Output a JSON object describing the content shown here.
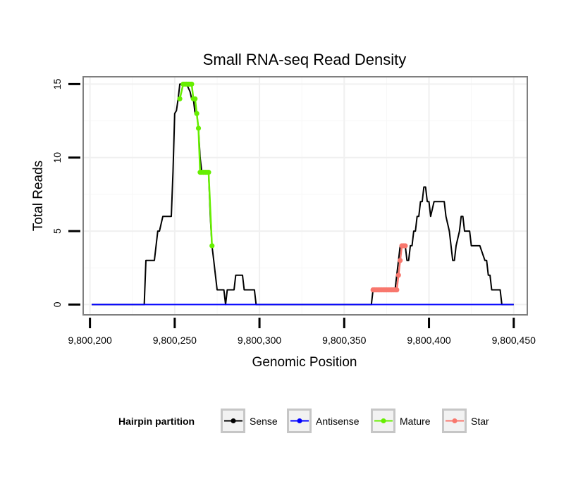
{
  "chart_data": {
    "type": "line",
    "title": "Small RNA-seq Read Density",
    "xlabel": "Genomic Position",
    "ylabel": "Total Reads",
    "xlim": [
      9800196,
      9800458
    ],
    "ylim": [
      -0.7,
      15.5
    ],
    "x_ticks": [
      9800200,
      9800250,
      9800300,
      9800350,
      9800400,
      9800450
    ],
    "x_tick_labels": [
      "9,800,200",
      "9,800,250",
      "9,800,300",
      "9,800,350",
      "9,800,400",
      "9,800,450"
    ],
    "y_ticks": [
      0,
      5,
      10,
      15
    ],
    "y_tick_labels": [
      "0",
      "5",
      "10",
      "15"
    ],
    "grid": true,
    "legend": {
      "title": "Hairpin partition",
      "position": "bottom",
      "entries": [
        {
          "name": "Sense",
          "color": "#000000"
        },
        {
          "name": "Antisense",
          "color": "#0000ff"
        },
        {
          "name": "Mature",
          "color": "#66ee00"
        },
        {
          "name": "Star",
          "color": "#f8776d"
        }
      ]
    },
    "series": [
      {
        "name": "Sense",
        "color": "#000000",
        "x": [
          9800201,
          9800232,
          9800233,
          9800238,
          9800239,
          9800240,
          9800241,
          9800242,
          9800243,
          9800248,
          9800249,
          9800250,
          9800251,
          9800252,
          9800253,
          9800255,
          9800256,
          9800257,
          9800259,
          9800260,
          9800261,
          9800262,
          9800263,
          9800264,
          9800265,
          9800266,
          9800267,
          9800270,
          9800271,
          9800272,
          9800273,
          9800274,
          9800275,
          9800278,
          9800279,
          9800280,
          9800281,
          9800285,
          9800286,
          9800290,
          9800291,
          9800297,
          9800298,
          9800301,
          9800302,
          9800366,
          9800367,
          9800380,
          9800381,
          9800382,
          9800383,
          9800386,
          9800387,
          9800388,
          9800389,
          9800390,
          9800391,
          9800392,
          9800393,
          9800394,
          9800395,
          9800396,
          9800397,
          9800398,
          9800399,
          9800400,
          9800401,
          9800403,
          9800404,
          9800409,
          9800410,
          9800412,
          9800413,
          9800414,
          9800415,
          9800416,
          9800418,
          9800419,
          9800420,
          9800421,
          9800422,
          9800424,
          9800425,
          9800429,
          9800430,
          9800433,
          9800434,
          9800435,
          9800436,
          9800437,
          9800438,
          9800439,
          9800440,
          9800442,
          9800443,
          9800448,
          9800449,
          9800450
        ],
        "y": [
          0,
          0,
          3,
          3,
          4,
          5,
          5,
          5.5,
          6,
          6,
          9,
          13,
          13.2,
          14,
          15,
          15,
          15,
          15,
          14.5,
          14,
          14,
          13,
          13,
          12,
          10,
          9,
          9,
          9,
          6,
          4,
          3,
          2,
          1,
          1,
          1,
          0,
          1,
          1,
          2,
          2,
          1,
          1,
          0,
          0,
          0,
          0,
          1,
          1,
          2,
          3,
          4,
          4,
          3,
          3,
          4,
          4,
          5,
          5,
          6,
          6,
          7,
          7,
          8,
          8,
          7,
          7,
          6,
          7,
          7,
          7,
          6,
          5,
          4,
          3,
          3,
          4,
          5,
          6,
          6,
          5,
          5,
          5,
          4,
          4,
          4,
          3,
          3,
          2,
          2,
          1,
          1,
          1,
          1,
          1,
          0,
          0,
          0,
          0
        ]
      },
      {
        "name": "Antisense",
        "color": "#0000ff",
        "x": [
          9800201,
          9800450
        ],
        "y": [
          0,
          0
        ]
      },
      {
        "name": "Mature",
        "color": "#66ee00",
        "x": [
          9800253,
          9800255,
          9800256,
          9800257,
          9800258,
          9800259,
          9800260,
          9800261,
          9800262,
          9800263,
          9800264,
          9800265,
          9800266,
          9800267,
          9800268,
          9800269,
          9800270,
          9800272
        ],
        "y": [
          14,
          15,
          15,
          15,
          15,
          15,
          15,
          14,
          14,
          13,
          12,
          9,
          9,
          9,
          9,
          9,
          9,
          4
        ]
      },
      {
        "name": "Star",
        "color": "#f8776d",
        "x": [
          9800367,
          9800368,
          9800369,
          9800370,
          9800371,
          9800372,
          9800373,
          9800374,
          9800375,
          9800376,
          9800377,
          9800378,
          9800379,
          9800380,
          9800381,
          9800382,
          9800383,
          9800384,
          9800385,
          9800386
        ],
        "y": [
          1,
          1,
          1,
          1,
          1,
          1,
          1,
          1,
          1,
          1,
          1,
          1,
          1,
          1,
          1,
          2,
          3,
          4,
          4,
          4
        ]
      }
    ]
  }
}
